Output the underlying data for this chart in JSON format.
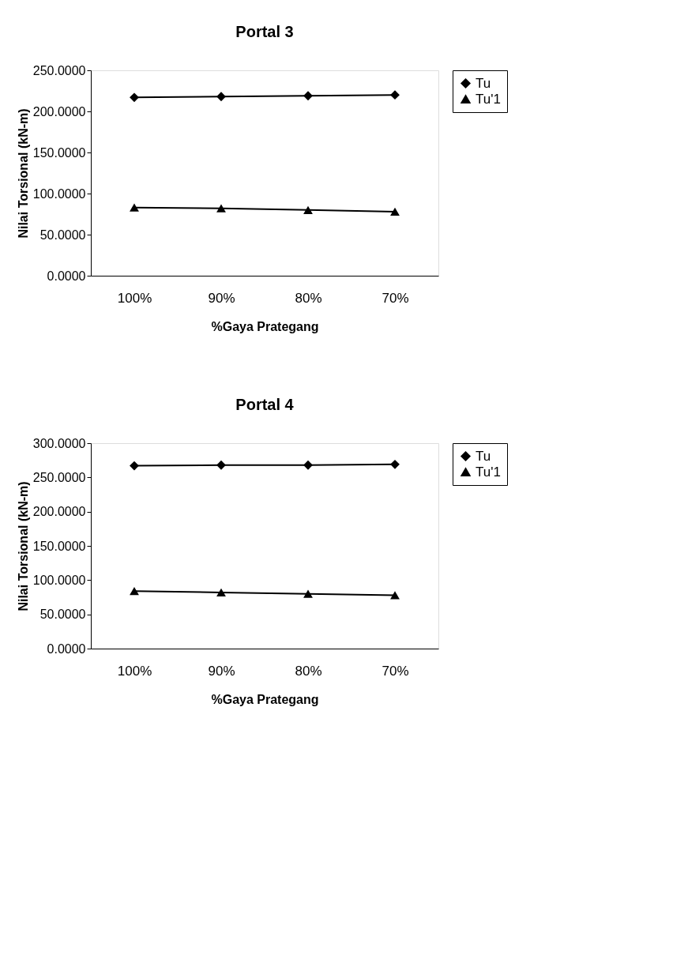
{
  "chart_data": [
    {
      "type": "line",
      "title": "Portal 3",
      "xlabel": "%Gaya Prategang",
      "ylabel": "Nilai Torsional (kN-m)",
      "categories": [
        "100%",
        "90%",
        "80%",
        "70%"
      ],
      "series": [
        {
          "name": "Tu",
          "color": "#000000",
          "marker": "diamond",
          "values": [
            217,
            218,
            219,
            220
          ]
        },
        {
          "name": "Tu'1",
          "color": "#000000",
          "marker": "triangle",
          "values": [
            83,
            82,
            80,
            78
          ]
        }
      ],
      "ylim": [
        0,
        250
      ],
      "yticks": [
        {
          "value": 0,
          "label": "0.0000"
        },
        {
          "value": 50,
          "label": "50.0000"
        },
        {
          "value": 100,
          "label": "100.0000"
        },
        {
          "value": 150,
          "label": "150.0000"
        },
        {
          "value": 200,
          "label": "200.0000"
        },
        {
          "value": 250,
          "label": "250.0000"
        }
      ],
      "grid": false,
      "legend": "right",
      "line_style": "solid"
    },
    {
      "type": "line",
      "title": "Portal 4",
      "xlabel": "%Gaya Prategang",
      "ylabel": "Nilai Torsional (kN-m)",
      "categories": [
        "100%",
        "90%",
        "80%",
        "70%"
      ],
      "series": [
        {
          "name": "Tu",
          "color": "#000000",
          "marker": "diamond",
          "values": [
            267,
            268,
            268,
            269
          ]
        },
        {
          "name": "Tu'1",
          "color": "#000000",
          "marker": "triangle",
          "values": [
            84,
            82,
            80,
            78
          ]
        }
      ],
      "ylim": [
        0,
        300
      ],
      "yticks": [
        {
          "value": 0,
          "label": "0.0000"
        },
        {
          "value": 50,
          "label": "50.0000"
        },
        {
          "value": 100,
          "label": "100.0000"
        },
        {
          "value": 150,
          "label": "150.0000"
        },
        {
          "value": 200,
          "label": "200.0000"
        },
        {
          "value": 250,
          "label": "250.0000"
        },
        {
          "value": 300,
          "label": "300.0000"
        }
      ],
      "grid": false,
      "legend": "right",
      "line_style": "solid"
    }
  ]
}
